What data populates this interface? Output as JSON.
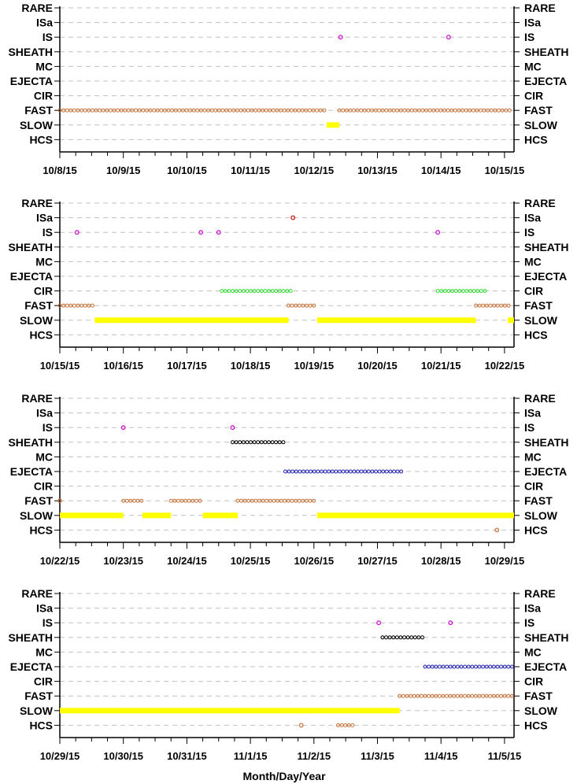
{
  "chart_data": {
    "type": "scatter",
    "xlabel": "Month/Day/Year",
    "categories": [
      "RARE",
      "ISa",
      "IS",
      "SHEATH",
      "MC",
      "EJECTA",
      "CIR",
      "FAST",
      "SLOW",
      "HCS"
    ],
    "colors": {
      "FAST": "#c8733a",
      "SLOW": "#ffff00",
      "IS": "#cc00cc",
      "ISa": "#cc0000",
      "CIR": "#33dd33",
      "SHEATH": "#000000",
      "EJECTA": "#2020b0",
      "HCS": "#c8733a"
    },
    "panels": [
      {
        "xlim": [
          "10/8/15",
          "10/15/15"
        ],
        "ticks": [
          "10/8/15",
          "10/9/15",
          "10/10/15",
          "10/11/15",
          "10/12/15",
          "10/13/15",
          "10/14/15",
          "10/15/15"
        ],
        "segments": [
          {
            "category": "FAST",
            "start": 0.0,
            "end": 4.2
          },
          {
            "category": "FAST",
            "start": 4.4,
            "end": 7.1
          },
          {
            "category": "SLOW",
            "start": 4.2,
            "end": 4.4
          }
        ],
        "points": [
          {
            "category": "IS",
            "x": 4.42
          },
          {
            "category": "IS",
            "x": 6.12
          }
        ]
      },
      {
        "xlim": [
          "10/15/15",
          "10/22/15"
        ],
        "ticks": [
          "10/15/15",
          "10/16/15",
          "10/17/15",
          "10/18/15",
          "10/19/15",
          "10/20/15",
          "10/21/15",
          "10/22/15"
        ],
        "segments": [
          {
            "category": "FAST",
            "start": 0.0,
            "end": 0.55
          },
          {
            "category": "SLOW",
            "start": 0.55,
            "end": 3.6
          },
          {
            "category": "CIR",
            "start": 2.55,
            "end": 3.65
          },
          {
            "category": "FAST",
            "start": 3.6,
            "end": 4.05
          },
          {
            "category": "SLOW",
            "start": 4.05,
            "end": 6.55
          },
          {
            "category": "CIR",
            "start": 5.95,
            "end": 6.7
          },
          {
            "category": "FAST",
            "start": 6.55,
            "end": 7.1
          },
          {
            "category": "SLOW",
            "start": 7.05,
            "end": 7.15
          }
        ],
        "points": [
          {
            "category": "IS",
            "x": 0.27
          },
          {
            "category": "IS",
            "x": 2.22
          },
          {
            "category": "IS",
            "x": 2.5
          },
          {
            "category": "ISa",
            "x": 3.67
          },
          {
            "category": "IS",
            "x": 5.95
          }
        ]
      },
      {
        "xlim": [
          "10/22/15",
          "10/29/15"
        ],
        "ticks": [
          "10/22/15",
          "10/23/15",
          "10/24/15",
          "10/25/15",
          "10/26/15",
          "10/27/15",
          "10/28/15",
          "10/29/15"
        ],
        "segments": [
          {
            "category": "SLOW",
            "start": 0.0,
            "end": 1.0
          },
          {
            "category": "FAST",
            "start": 1.0,
            "end": 1.3
          },
          {
            "category": "SLOW",
            "start": 1.3,
            "end": 1.75
          },
          {
            "category": "FAST",
            "start": 1.75,
            "end": 2.25
          },
          {
            "category": "SLOW",
            "start": 2.25,
            "end": 2.8
          },
          {
            "category": "FAST",
            "start": 2.8,
            "end": 4.05
          },
          {
            "category": "SHEATH",
            "start": 2.72,
            "end": 3.55
          },
          {
            "category": "EJECTA",
            "start": 3.55,
            "end": 5.4
          },
          {
            "category": "SLOW",
            "start": 4.05,
            "end": 7.15
          }
        ],
        "points": [
          {
            "category": "FAST",
            "x": 0.0
          },
          {
            "category": "IS",
            "x": 1.0
          },
          {
            "category": "IS",
            "x": 2.72
          },
          {
            "category": "HCS",
            "x": 6.88
          }
        ]
      },
      {
        "xlim": [
          "10/29/15",
          "11/5/15"
        ],
        "ticks": [
          "10/29/15",
          "10/30/15",
          "10/31/15",
          "11/1/15",
          "11/2/15",
          "11/3/15",
          "11/4/15",
          "11/5/15"
        ],
        "segments": [
          {
            "category": "SLOW",
            "start": 0.0,
            "end": 5.35
          },
          {
            "category": "SHEATH",
            "start": 5.08,
            "end": 5.75
          },
          {
            "category": "FAST",
            "start": 5.35,
            "end": 7.15
          },
          {
            "category": "EJECTA",
            "start": 5.75,
            "end": 7.15
          },
          {
            "category": "HCS",
            "start": 4.38,
            "end": 4.62
          }
        ],
        "points": [
          {
            "category": "HCS",
            "x": 3.8
          },
          {
            "category": "IS",
            "x": 5.02
          },
          {
            "category": "IS",
            "x": 6.15
          }
        ]
      }
    ]
  }
}
